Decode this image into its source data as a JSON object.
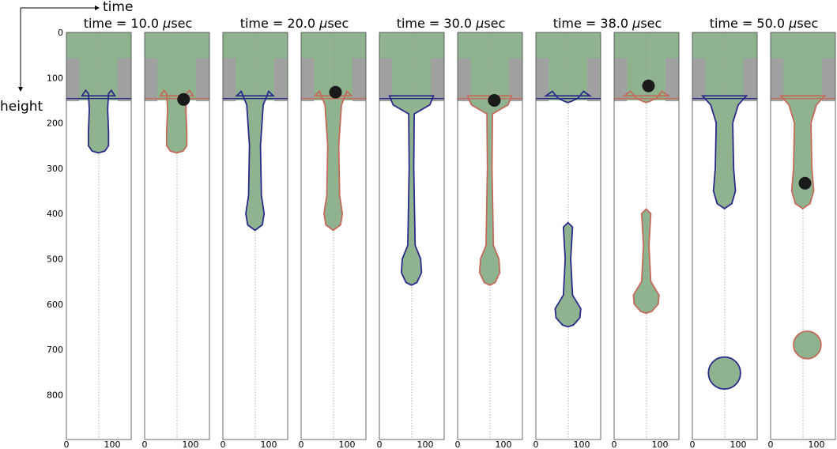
{
  "axis_labels": {
    "x_arrow": "time",
    "y_arrow": "height"
  },
  "y_ticks": [
    "0",
    "100",
    "200",
    "300",
    "400",
    "500",
    "600",
    "700",
    "800"
  ],
  "x_ticks": [
    "0",
    "100"
  ],
  "time_unit_symbol": "μsec",
  "groups": [
    {
      "title_prefix": "time = ",
      "time": "10.0"
    },
    {
      "title_prefix": "time = ",
      "time": "20.0"
    },
    {
      "title_prefix": "time = ",
      "time": "30.0"
    },
    {
      "title_prefix": "time = ",
      "time": "38.0"
    },
    {
      "title_prefix": "time = ",
      "time": "50.0"
    }
  ],
  "colors": {
    "liquid": "#8fb38f",
    "nozzle_wall": "#a0a0a0",
    "outline_left": "#2a2a8a",
    "outline_right": "#c46a5a",
    "particle": "#1a1a1a",
    "frame": "#444444",
    "centerline": "#9a9a9a"
  }
}
